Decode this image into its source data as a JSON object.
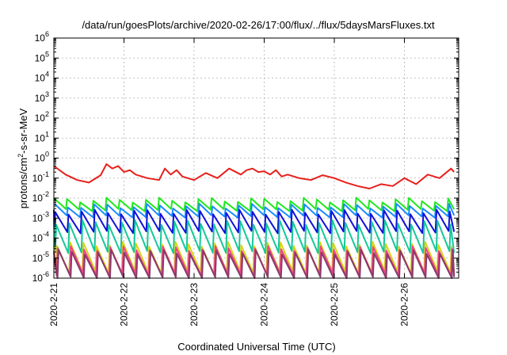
{
  "chart_data": {
    "type": "line",
    "title": "/data/run/goesPlots/archive/2020-02-26/17:00/flux/../flux/5daysMarsFluxes.txt",
    "xlabel": "Coordinated Universal Time (UTC)",
    "ylabel_prefix": "protons/cm",
    "ylabel_sup": "2",
    "ylabel_suffix": "-s-sr-MeV",
    "y_scale": "log",
    "ylim": [
      1e-06,
      1000000.0
    ],
    "xlim": [
      "2020-02-21T00:00",
      "2020-02-26T17:00"
    ],
    "x_ticks": [
      "2020-2-21",
      "2020-2-22",
      "2020-2-23",
      "2020-2-24",
      "2020-2-25",
      "2020-2-26"
    ],
    "y_ticks": [
      {
        "base": "10",
        "exp": "-6"
      },
      {
        "base": "10",
        "exp": "-5"
      },
      {
        "base": "10",
        "exp": "-4"
      },
      {
        "base": "10",
        "exp": "-3"
      },
      {
        "base": "10",
        "exp": "-2"
      },
      {
        "base": "10",
        "exp": "-1"
      },
      {
        "base": "10",
        "exp": "0"
      },
      {
        "base": "10",
        "exp": "1"
      },
      {
        "base": "10",
        "exp": "2"
      },
      {
        "base": "10",
        "exp": "3"
      },
      {
        "base": "10",
        "exp": "4"
      },
      {
        "base": "10",
        "exp": "5"
      },
      {
        "base": "10",
        "exp": "6"
      }
    ],
    "grid": true,
    "series": [
      {
        "color": "#e8201c",
        "pattern": "sawtooth",
        "x_hours": [
          0,
          4,
          8,
          12,
          16,
          18,
          20,
          22,
          24,
          26,
          28,
          32,
          36,
          38,
          40,
          42,
          44,
          48,
          52,
          56,
          60,
          64,
          66,
          68,
          70,
          72,
          74,
          76,
          78,
          80,
          84,
          88,
          92,
          96,
          100,
          104,
          108,
          112,
          116,
          120,
          124,
          128,
          132,
          136,
          137
        ],
        "y": [
          0.4,
          0.15,
          0.08,
          0.06,
          0.14,
          0.5,
          0.3,
          0.4,
          0.2,
          0.25,
          0.15,
          0.1,
          0.08,
          0.3,
          0.15,
          0.25,
          0.12,
          0.08,
          0.18,
          0.1,
          0.3,
          0.15,
          0.25,
          0.3,
          0.2,
          0.22,
          0.15,
          0.25,
          0.12,
          0.15,
          0.1,
          0.08,
          0.14,
          0.1,
          0.06,
          0.04,
          0.03,
          0.05,
          0.04,
          0.1,
          0.05,
          0.15,
          0.1,
          0.3,
          0.2
        ]
      },
      {
        "color": "#1ee81e",
        "pattern": "sawtooth",
        "top": 0.008,
        "bottom": 0.0025,
        "period_h": 4.5,
        "phase": 0.0
      },
      {
        "color": "#1a8cff",
        "pattern": "sawtooth",
        "top": 0.004,
        "bottom": 0.0012,
        "period_h": 4.5,
        "phase": 0.3
      },
      {
        "color": "#1010d8",
        "pattern": "sawtooth",
        "top": 0.002,
        "bottom": 0.0002,
        "period_h": 4.5,
        "phase": 0.5
      },
      {
        "color": "#14c89a",
        "pattern": "sawtooth",
        "top": 0.0006,
        "bottom": 2e-05,
        "period_h": 4.5,
        "phase": 0.8
      },
      {
        "color": "#d4d41a",
        "pattern": "sawtooth",
        "top": 5e-05,
        "bottom": 2e-06,
        "period_h": 4.5,
        "phase": 1.1
      },
      {
        "color": "#ee4488",
        "pattern": "sawtooth",
        "top": 3e-05,
        "bottom": 1.5e-06,
        "period_h": 4.5,
        "phase": 1.3
      },
      {
        "color": "#8a3a6a",
        "pattern": "sawtooth",
        "top": 2e-05,
        "bottom": 1e-06,
        "period_h": 4.5,
        "phase": 1.6
      }
    ]
  }
}
